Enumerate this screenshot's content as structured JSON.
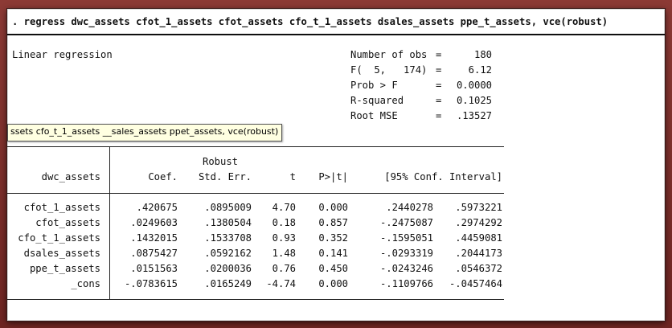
{
  "command": ". regress dwc_assets cfot_1_assets cfot_assets cfo_t_1_assets dsales_assets ppe_t_assets, vce(robust)",
  "model_title": "Linear regression",
  "stats": [
    {
      "label": "Number of obs",
      "eq": "=",
      "value": "180"
    },
    {
      "label": "F(  5,   174)",
      "eq": "=",
      "value": "6.12"
    },
    {
      "label": "Prob > F",
      "eq": "=",
      "value": "0.0000"
    },
    {
      "label": "R-squared",
      "eq": "=",
      "value": "0.1025"
    },
    {
      "label": "Root MSE",
      "eq": "=",
      "value": ".13527"
    }
  ],
  "tooltip": "ssets cfo_t_1_assets __sales_assets ppet_assets, vce(robust)",
  "table": {
    "robust_label": "Robust",
    "depvar": "dwc_assets",
    "headers": {
      "coef": "Coef.",
      "se": "Std. Err.",
      "t": "t",
      "p": "P>|t|",
      "ci": "[95% Conf. Interval]"
    },
    "rows": [
      {
        "name": "cfot_1_assets",
        "coef": ".420675",
        "se": ".0895009",
        "t": "4.70",
        "p": "0.000",
        "lo": ".2440278",
        "hi": ".5973221"
      },
      {
        "name": "cfot_assets",
        "coef": ".0249603",
        "se": ".1380504",
        "t": "0.18",
        "p": "0.857",
        "lo": "-.2475087",
        "hi": ".2974292"
      },
      {
        "name": "cfo_t_1_assets",
        "coef": ".1432015",
        "se": ".1533708",
        "t": "0.93",
        "p": "0.352",
        "lo": "-.1595051",
        "hi": ".4459081"
      },
      {
        "name": "dsales_assets",
        "coef": ".0875427",
        "se": ".0592162",
        "t": "1.48",
        "p": "0.141",
        "lo": "-.0293319",
        "hi": ".2044173"
      },
      {
        "name": "ppe_t_assets",
        "coef": ".0151563",
        "se": ".0200036",
        "t": "0.76",
        "p": "0.450",
        "lo": "-.0243246",
        "hi": ".0546372"
      },
      {
        "name": "_cons",
        "coef": "-.0783615",
        "se": ".0165249",
        "t": "-4.74",
        "p": "0.000",
        "lo": "-.1109766",
        "hi": "-.0457464"
      }
    ]
  }
}
